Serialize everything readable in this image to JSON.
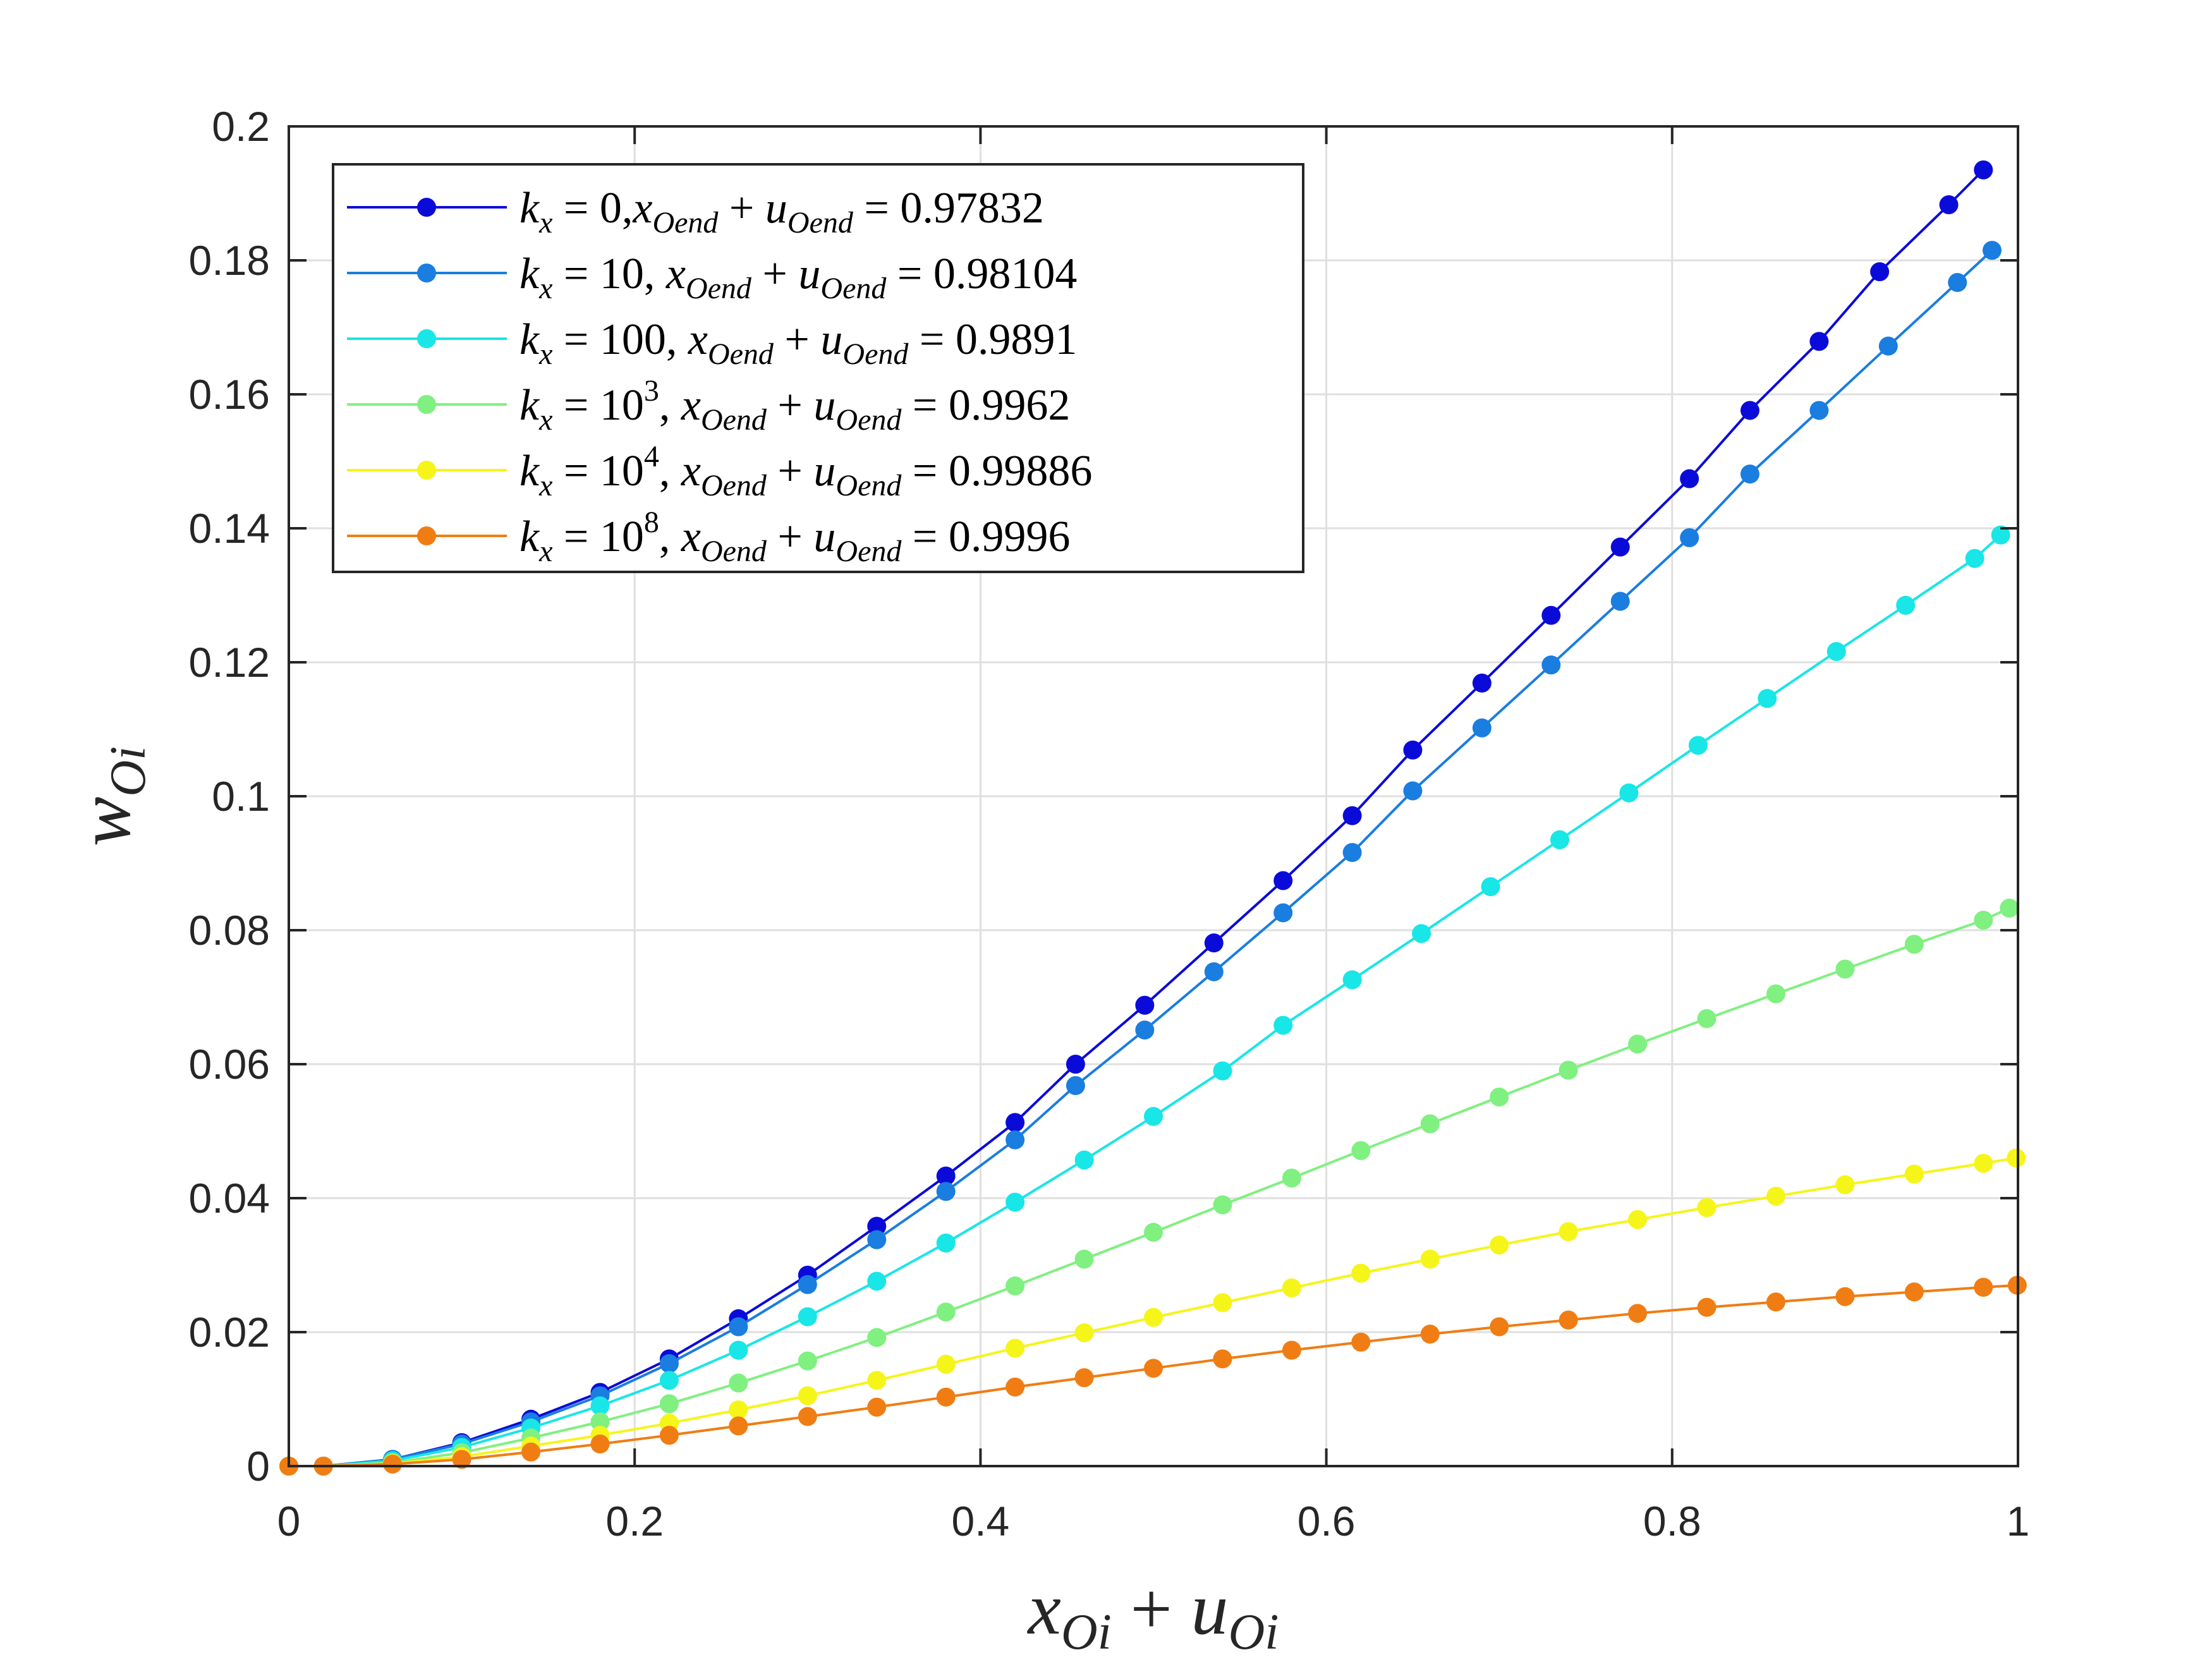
{
  "chart_data": {
    "type": "line",
    "title": "",
    "xlim": [
      0,
      1
    ],
    "ylim": [
      0,
      0.2
    ],
    "xticks": [
      0,
      0.2,
      0.4,
      0.6,
      0.8,
      1
    ],
    "yticks": [
      0,
      0.02,
      0.04,
      0.06,
      0.08,
      0.1,
      0.12,
      0.14,
      0.16,
      0.18,
      0.2
    ],
    "xtick_labels": [
      "0",
      "0.2",
      "0.4",
      "0.6",
      "0.8",
      "1"
    ],
    "ytick_labels": [
      "0",
      "0.02",
      "0.04",
      "0.06",
      "0.08",
      "0.1",
      "0.12",
      "0.14",
      "0.16",
      "0.18",
      "0.2"
    ],
    "grid": true,
    "legend_position": "top-left",
    "xlabel": {
      "base": "x",
      "sub": "Oi",
      "op": "+",
      "base2": "u",
      "sub2": "Oi"
    },
    "ylabel": {
      "base": "w",
      "sub": "Oi"
    },
    "series": [
      {
        "name": "k_x = 0, x_Oend + u_Oend = 0.97832",
        "legend": {
          "k": "0",
          "sep": ",",
          "value": "0.97832"
        },
        "color": "#0b0bd9",
        "x": [
          0,
          0.02,
          0.06,
          0.1,
          0.14,
          0.18,
          0.22,
          0.26,
          0.3,
          0.34,
          0.38,
          0.42,
          0.455,
          0.495,
          0.535,
          0.575,
          0.615,
          0.65,
          0.69,
          0.73,
          0.77,
          0.81,
          0.845,
          0.885,
          0.92,
          0.96,
          0.98
        ],
        "values": [
          0,
          0,
          0.001,
          0.0035,
          0.007,
          0.011,
          0.016,
          0.022,
          0.0285,
          0.0358,
          0.0433,
          0.0513,
          0.06,
          0.0688,
          0.0781,
          0.0874,
          0.0971,
          0.1069,
          0.1169,
          0.127,
          0.1372,
          0.1474,
          0.1576,
          0.1679,
          0.1783,
          0.1883,
          0.1935
        ]
      },
      {
        "name": "k_x = 10, x_Oend + u_Oend = 0.98104",
        "legend": {
          "k": "10",
          "sep": ", ",
          "value": "0.98104"
        },
        "color": "#1a7de0",
        "x": [
          0,
          0.02,
          0.06,
          0.1,
          0.14,
          0.18,
          0.22,
          0.26,
          0.3,
          0.34,
          0.38,
          0.42,
          0.455,
          0.495,
          0.535,
          0.575,
          0.615,
          0.65,
          0.69,
          0.73,
          0.77,
          0.81,
          0.845,
          0.885,
          0.925,
          0.965,
          0.985
        ],
        "values": [
          0,
          0,
          0.001,
          0.0033,
          0.0066,
          0.0105,
          0.0153,
          0.0208,
          0.0271,
          0.0338,
          0.041,
          0.0487,
          0.0568,
          0.0651,
          0.0738,
          0.0826,
          0.0916,
          0.1008,
          0.1102,
          0.1196,
          0.1291,
          0.1386,
          0.1481,
          0.1576,
          0.1672,
          0.1767,
          0.1815
        ]
      },
      {
        "name": "k_x = 100, x_Oend + u_Oend = 0.9891",
        "legend": {
          "k": "100",
          "sep": ", ",
          "value": "0.9891"
        },
        "color": "#19e6e6",
        "x": [
          0,
          0.02,
          0.06,
          0.1,
          0.14,
          0.18,
          0.22,
          0.26,
          0.3,
          0.34,
          0.38,
          0.42,
          0.46,
          0.5,
          0.54,
          0.575,
          0.615,
          0.655,
          0.695,
          0.735,
          0.775,
          0.815,
          0.855,
          0.895,
          0.935,
          0.975,
          0.99
        ],
        "values": [
          0,
          0,
          0.0008,
          0.0028,
          0.0057,
          0.009,
          0.0128,
          0.0173,
          0.0223,
          0.0276,
          0.0333,
          0.0394,
          0.0457,
          0.0522,
          0.059,
          0.0658,
          0.0726,
          0.0795,
          0.0865,
          0.0935,
          0.1005,
          0.1076,
          0.1146,
          0.1216,
          0.1285,
          0.1355,
          0.139
        ]
      },
      {
        "name": "k_x = 10^3, x_Oend + u_Oend = 0.9962",
        "legend": {
          "k": "10",
          "sup": "3",
          "sep": ", ",
          "value": "0.9962"
        },
        "color": "#80f080",
        "x": [
          0,
          0.02,
          0.06,
          0.1,
          0.14,
          0.18,
          0.22,
          0.26,
          0.3,
          0.34,
          0.38,
          0.42,
          0.46,
          0.5,
          0.54,
          0.58,
          0.62,
          0.66,
          0.7,
          0.74,
          0.78,
          0.82,
          0.86,
          0.9,
          0.94,
          0.98,
          0.995
        ],
        "values": [
          0,
          0,
          0.0005,
          0.002,
          0.0042,
          0.0066,
          0.0093,
          0.0124,
          0.0157,
          0.0192,
          0.023,
          0.0269,
          0.0309,
          0.0349,
          0.039,
          0.043,
          0.0471,
          0.0511,
          0.0551,
          0.0591,
          0.063,
          0.0668,
          0.0705,
          0.0742,
          0.0779,
          0.0815,
          0.0833
        ]
      },
      {
        "name": "k_x = 10^4, x_Oend + u_Oend = 0.99886",
        "legend": {
          "k": "10",
          "sup": "4",
          "sep": ", ",
          "value": "0.99886"
        },
        "color": "#f5f51a",
        "x": [
          0,
          0.02,
          0.06,
          0.1,
          0.14,
          0.18,
          0.22,
          0.26,
          0.3,
          0.34,
          0.38,
          0.42,
          0.46,
          0.5,
          0.54,
          0.58,
          0.62,
          0.66,
          0.7,
          0.74,
          0.78,
          0.82,
          0.86,
          0.9,
          0.94,
          0.98,
          0.999
        ],
        "values": [
          0,
          0,
          0.0004,
          0.0014,
          0.003,
          0.0046,
          0.0064,
          0.0084,
          0.0105,
          0.0128,
          0.0152,
          0.0176,
          0.0199,
          0.0222,
          0.0244,
          0.0266,
          0.0288,
          0.0309,
          0.033,
          0.035,
          0.0368,
          0.0386,
          0.0403,
          0.042,
          0.0436,
          0.0452,
          0.046
        ]
      },
      {
        "name": "k_x = 10^8, x_Oend + u_Oend = 0.9996",
        "legend": {
          "k": "10",
          "sup": "8",
          "sep": ", ",
          "value": "0.9996"
        },
        "color": "#f07d14",
        "x": [
          0,
          0.02,
          0.06,
          0.1,
          0.14,
          0.18,
          0.22,
          0.26,
          0.3,
          0.34,
          0.38,
          0.42,
          0.46,
          0.5,
          0.54,
          0.58,
          0.62,
          0.66,
          0.7,
          0.74,
          0.78,
          0.82,
          0.86,
          0.9,
          0.94,
          0.98,
          0.9996
        ],
        "values": [
          0,
          0,
          0.0003,
          0.001,
          0.0021,
          0.0033,
          0.0046,
          0.006,
          0.0074,
          0.0088,
          0.0103,
          0.0118,
          0.0132,
          0.0146,
          0.016,
          0.0173,
          0.0185,
          0.0197,
          0.0208,
          0.0218,
          0.0228,
          0.0237,
          0.0245,
          0.0253,
          0.026,
          0.0267,
          0.027
        ]
      }
    ]
  }
}
